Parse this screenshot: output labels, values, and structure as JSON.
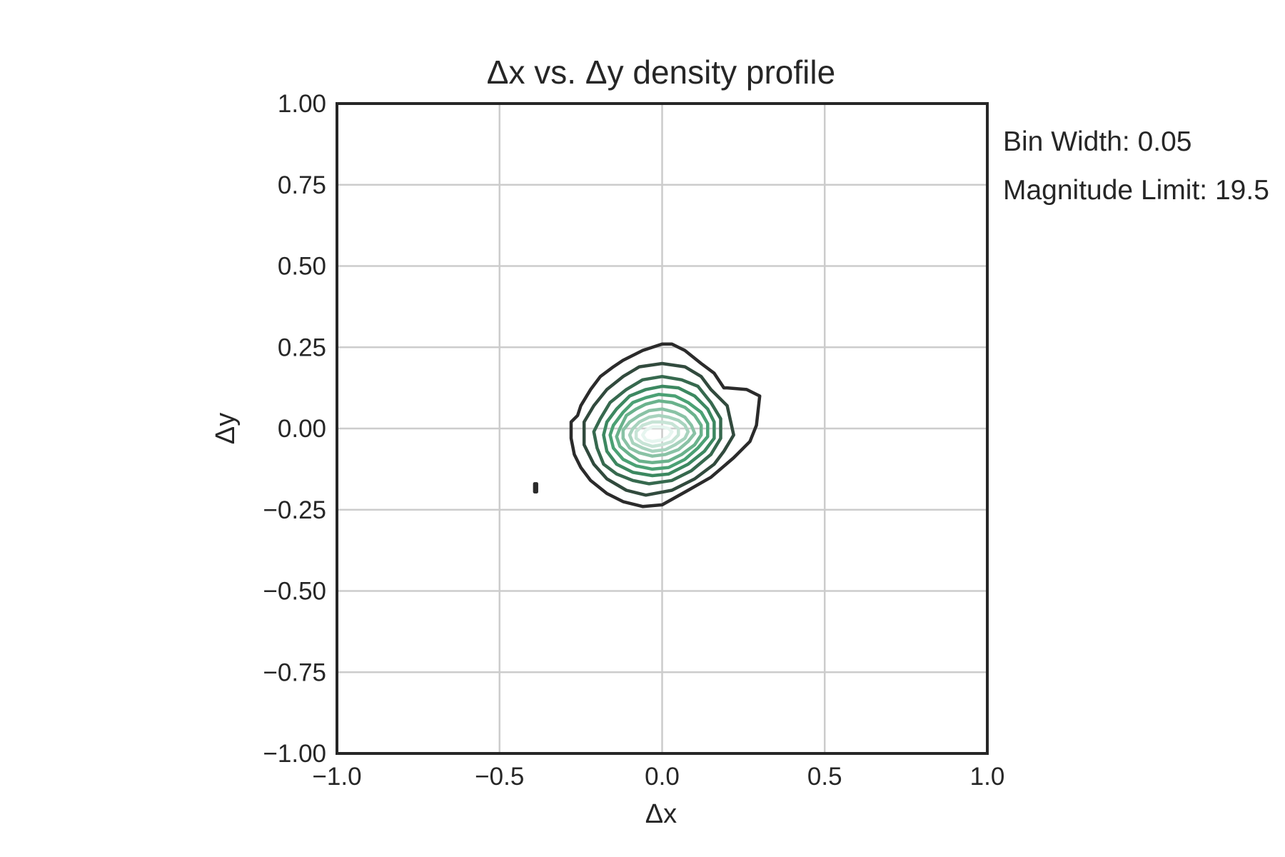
{
  "chart_data": {
    "type": "contour",
    "title": "Δx vs. Δy density profile",
    "xlabel": "Δx",
    "ylabel": "Δy",
    "xlim": [
      -1.0,
      1.0
    ],
    "ylim": [
      -1.0,
      1.0
    ],
    "xticks": [
      -1.0,
      -0.5,
      0.0,
      0.5,
      1.0
    ],
    "xtick_labels": [
      "−1.0",
      "−0.5",
      "0.0",
      "0.5",
      "1.0"
    ],
    "yticks": [
      1.0,
      0.75,
      0.5,
      0.25,
      0.0,
      -0.25,
      -0.5,
      -0.75,
      -1.0
    ],
    "ytick_labels": [
      "1.00",
      "0.75",
      "0.50",
      "0.25",
      "0.00",
      "−0.25",
      "−0.50",
      "−0.75",
      "−1.00"
    ],
    "grid": true,
    "annotations": [
      "Bin Width: 0.05",
      "Magnitude Limit: 19.5"
    ],
    "colors": {
      "outer_contour": "#2b2b2b",
      "inner_contour": "#e6f5ef",
      "mid_contour": "#3f9a6a",
      "grid": "#cccccc",
      "axes": "#262626"
    },
    "contour_levels": [
      {
        "level": 1,
        "points": [
          [
            -0.06,
            -0.24
          ],
          [
            0.0,
            -0.235
          ],
          [
            0.08,
            -0.19
          ],
          [
            0.15,
            -0.15
          ],
          [
            0.22,
            -0.09
          ],
          [
            0.27,
            -0.04
          ],
          [
            0.29,
            0.01
          ],
          [
            0.3,
            0.1
          ],
          [
            0.26,
            0.12
          ],
          [
            0.2,
            0.125
          ],
          [
            0.19,
            0.125
          ],
          [
            0.16,
            0.17
          ],
          [
            0.12,
            0.2
          ],
          [
            0.07,
            0.24
          ],
          [
            0.03,
            0.26
          ],
          [
            0.0,
            0.26
          ],
          [
            -0.06,
            0.24
          ],
          [
            -0.12,
            0.21
          ],
          [
            -0.15,
            0.19
          ],
          [
            -0.19,
            0.16
          ],
          [
            -0.22,
            0.12
          ],
          [
            -0.25,
            0.07
          ],
          [
            -0.26,
            0.04
          ],
          [
            -0.28,
            0.02
          ],
          [
            -0.28,
            -0.03
          ],
          [
            -0.27,
            -0.08
          ],
          [
            -0.25,
            -0.12
          ],
          [
            -0.22,
            -0.16
          ],
          [
            -0.17,
            -0.2
          ],
          [
            -0.12,
            -0.225
          ]
        ]
      },
      {
        "level": 2,
        "points": [
          [
            -0.05,
            -0.205
          ],
          [
            0.03,
            -0.19
          ],
          [
            0.1,
            -0.155
          ],
          [
            0.16,
            -0.11
          ],
          [
            0.19,
            -0.07
          ],
          [
            0.22,
            -0.02
          ],
          [
            0.2,
            0.07
          ],
          [
            0.15,
            0.12
          ],
          [
            0.12,
            0.16
          ],
          [
            0.07,
            0.19
          ],
          [
            0.0,
            0.2
          ],
          [
            -0.07,
            0.19
          ],
          [
            -0.12,
            0.16
          ],
          [
            -0.17,
            0.12
          ],
          [
            -0.21,
            0.07
          ],
          [
            -0.24,
            0.02
          ],
          [
            -0.24,
            -0.05
          ],
          [
            -0.21,
            -0.11
          ],
          [
            -0.17,
            -0.155
          ],
          [
            -0.11,
            -0.19
          ]
        ]
      },
      {
        "level": 3,
        "points": [
          [
            -0.04,
            -0.17
          ],
          [
            0.03,
            -0.16
          ],
          [
            0.09,
            -0.13
          ],
          [
            0.15,
            -0.08
          ],
          [
            0.18,
            -0.03
          ],
          [
            0.18,
            0.03
          ],
          [
            0.15,
            0.08
          ],
          [
            0.11,
            0.13
          ],
          [
            0.06,
            0.15
          ],
          [
            0.0,
            0.16
          ],
          [
            -0.06,
            0.15
          ],
          [
            -0.11,
            0.12
          ],
          [
            -0.16,
            0.08
          ],
          [
            -0.19,
            0.03
          ],
          [
            -0.21,
            -0.01
          ],
          [
            -0.2,
            -0.06
          ],
          [
            -0.18,
            -0.11
          ],
          [
            -0.14,
            -0.14
          ],
          [
            -0.09,
            -0.16
          ]
        ]
      },
      {
        "level": 4,
        "points": [
          [
            -0.03,
            -0.145
          ],
          [
            0.02,
            -0.14
          ],
          [
            0.08,
            -0.11
          ],
          [
            0.13,
            -0.07
          ],
          [
            0.16,
            -0.03
          ],
          [
            0.16,
            0.02
          ],
          [
            0.14,
            0.06
          ],
          [
            0.1,
            0.1
          ],
          [
            0.05,
            0.125
          ],
          [
            0.0,
            0.13
          ],
          [
            -0.05,
            0.12
          ],
          [
            -0.1,
            0.1
          ],
          [
            -0.14,
            0.06
          ],
          [
            -0.17,
            0.02
          ],
          [
            -0.18,
            -0.02
          ],
          [
            -0.17,
            -0.07
          ],
          [
            -0.14,
            -0.11
          ],
          [
            -0.09,
            -0.135
          ]
        ]
      },
      {
        "level": 5,
        "points": [
          [
            -0.03,
            -0.125
          ],
          [
            0.02,
            -0.12
          ],
          [
            0.07,
            -0.095
          ],
          [
            0.11,
            -0.06
          ],
          [
            0.14,
            -0.025
          ],
          [
            0.14,
            0.015
          ],
          [
            0.12,
            0.05
          ],
          [
            0.08,
            0.08
          ],
          [
            0.04,
            0.1
          ],
          [
            -0.01,
            0.105
          ],
          [
            -0.05,
            0.095
          ],
          [
            -0.09,
            0.08
          ],
          [
            -0.12,
            0.05
          ],
          [
            -0.15,
            0.01
          ],
          [
            -0.16,
            -0.02
          ],
          [
            -0.15,
            -0.06
          ],
          [
            -0.12,
            -0.095
          ],
          [
            -0.08,
            -0.115
          ]
        ]
      },
      {
        "level": 6,
        "points": [
          [
            -0.03,
            -0.105
          ],
          [
            0.02,
            -0.1
          ],
          [
            0.06,
            -0.08
          ],
          [
            0.1,
            -0.05
          ],
          [
            0.12,
            -0.02
          ],
          [
            0.12,
            0.01
          ],
          [
            0.1,
            0.04
          ],
          [
            0.07,
            0.065
          ],
          [
            0.03,
            0.08
          ],
          [
            -0.01,
            0.085
          ],
          [
            -0.05,
            0.075
          ],
          [
            -0.08,
            0.06
          ],
          [
            -0.11,
            0.04
          ],
          [
            -0.13,
            0.0
          ],
          [
            -0.14,
            -0.025
          ],
          [
            -0.13,
            -0.055
          ],
          [
            -0.1,
            -0.08
          ],
          [
            -0.07,
            -0.1
          ]
        ]
      },
      {
        "level": 7,
        "points": [
          [
            -0.03,
            -0.085
          ],
          [
            0.01,
            -0.08
          ],
          [
            0.05,
            -0.065
          ],
          [
            0.08,
            -0.04
          ],
          [
            0.1,
            -0.015
          ],
          [
            0.09,
            0.01
          ],
          [
            0.07,
            0.035
          ],
          [
            0.04,
            0.05
          ],
          [
            0.0,
            0.06
          ],
          [
            -0.04,
            0.055
          ],
          [
            -0.07,
            0.04
          ],
          [
            -0.1,
            0.02
          ],
          [
            -0.12,
            -0.005
          ],
          [
            -0.12,
            -0.03
          ],
          [
            -0.1,
            -0.06
          ],
          [
            -0.07,
            -0.075
          ]
        ]
      },
      {
        "level": 8,
        "points": [
          [
            -0.03,
            -0.07
          ],
          [
            0.01,
            -0.065
          ],
          [
            0.04,
            -0.05
          ],
          [
            0.07,
            -0.03
          ],
          [
            0.08,
            -0.01
          ],
          [
            0.07,
            0.01
          ],
          [
            0.05,
            0.025
          ],
          [
            0.02,
            0.035
          ],
          [
            -0.01,
            0.04
          ],
          [
            -0.04,
            0.035
          ],
          [
            -0.07,
            0.02
          ],
          [
            -0.09,
            0.0
          ],
          [
            -0.1,
            -0.02
          ],
          [
            -0.09,
            -0.045
          ],
          [
            -0.06,
            -0.06
          ]
        ]
      },
      {
        "level": 9,
        "points": [
          [
            -0.03,
            -0.055
          ],
          [
            0.0,
            -0.05
          ],
          [
            0.03,
            -0.04
          ],
          [
            0.05,
            -0.02
          ],
          [
            0.05,
            0.0
          ],
          [
            0.03,
            0.015
          ],
          [
            0.0,
            0.02
          ],
          [
            -0.03,
            0.02
          ],
          [
            -0.06,
            0.01
          ],
          [
            -0.08,
            -0.01
          ],
          [
            -0.08,
            -0.03
          ],
          [
            -0.06,
            -0.045
          ]
        ]
      },
      {
        "level": 10,
        "points": [
          [
            -0.03,
            -0.04
          ],
          [
            0.0,
            -0.035
          ],
          [
            0.02,
            -0.025
          ],
          [
            0.03,
            -0.01
          ],
          [
            0.02,
            0.0
          ],
          [
            0.0,
            0.005
          ],
          [
            -0.03,
            0.005
          ],
          [
            -0.05,
            -0.005
          ],
          [
            -0.06,
            -0.02
          ],
          [
            -0.05,
            -0.035
          ]
        ]
      },
      {
        "level": 1,
        "points": [
          [
            -0.392,
            -0.17
          ],
          [
            -0.386,
            -0.17
          ],
          [
            -0.386,
            -0.195
          ],
          [
            -0.392,
            -0.195
          ]
        ]
      }
    ]
  }
}
